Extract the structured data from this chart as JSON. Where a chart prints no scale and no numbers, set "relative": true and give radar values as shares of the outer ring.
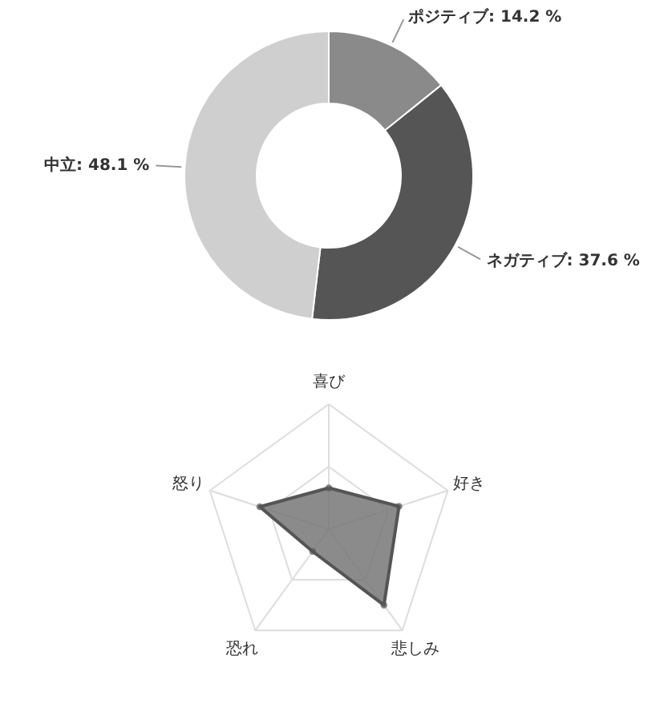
{
  "chart_data": [
    {
      "type": "donut",
      "categories": [
        "ポジティブ",
        "ネガティブ",
        "中立"
      ],
      "values": [
        14.2,
        37.6,
        48.1
      ],
      "colors": [
        "#8a8a8a",
        "#555555",
        "#cfcfcf"
      ],
      "value_labels": [
        "14.2 %",
        "37.6 %",
        "48.1 %"
      ]
    },
    {
      "type": "radar",
      "categories": [
        "喜び",
        "好き",
        "悲しみ",
        "恐れ",
        "怒り"
      ],
      "relative": true,
      "grid": true,
      "marker": "circle",
      "series": [
        {
          "color": "#777777",
          "values": [
            0.33,
            0.59,
            0.75,
            0.22,
            0.58
          ]
        }
      ]
    }
  ]
}
